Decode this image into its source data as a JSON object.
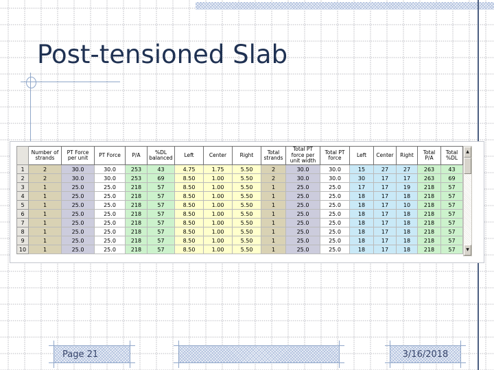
{
  "slide": {
    "title": "Post-tensioned Slab",
    "footer": {
      "page_label": "Page 21",
      "date": "3/16/2018"
    }
  },
  "table": {
    "columns": [
      {
        "label": "Number of strands",
        "group": "tan"
      },
      {
        "label": "PT Force per unit",
        "group": "lavender"
      },
      {
        "label": "PT Force",
        "group": "white"
      },
      {
        "label": "P/A",
        "group": "green"
      },
      {
        "label": "%DL balanced",
        "group": "green"
      },
      {
        "label": "Left",
        "group": "yellow"
      },
      {
        "label": "Center",
        "group": "yellow"
      },
      {
        "label": "Right",
        "group": "yellow"
      },
      {
        "label": "Total strands",
        "group": "tan"
      },
      {
        "label": "Total PT force per unit width",
        "group": "lavender"
      },
      {
        "label": "Total PT force",
        "group": "white"
      },
      {
        "label": "Left",
        "group": "cyan"
      },
      {
        "label": "Center",
        "group": "cyan"
      },
      {
        "label": "Right",
        "group": "cyan"
      },
      {
        "label": "Total P/A",
        "group": "green"
      },
      {
        "label": "Total %DL",
        "group": "green"
      }
    ],
    "rows": [
      {
        "num": "1",
        "cells": [
          "2",
          "30.0",
          "30.0",
          "253",
          "43",
          "4.75",
          "1.75",
          "5.50",
          "2",
          "30.0",
          "30.0",
          "15",
          "27",
          "27",
          "263",
          "43"
        ]
      },
      {
        "num": "2",
        "cells": [
          "2",
          "30.0",
          "30.0",
          "253",
          "69",
          "8.50",
          "1.00",
          "5.50",
          "2",
          "30.0",
          "30.0",
          "30",
          "17",
          "17",
          "263",
          "69"
        ]
      },
      {
        "num": "3",
        "cells": [
          "1",
          "25.0",
          "25.0",
          "218",
          "57",
          "8.50",
          "1.00",
          "5.50",
          "1",
          "25.0",
          "25.0",
          "17",
          "17",
          "19",
          "218",
          "57"
        ]
      },
      {
        "num": "4",
        "cells": [
          "1",
          "25.0",
          "25.0",
          "218",
          "57",
          "8.50",
          "1.00",
          "5.50",
          "1",
          "25.0",
          "25.0",
          "18",
          "17",
          "18",
          "218",
          "57"
        ]
      },
      {
        "num": "5",
        "cells": [
          "1",
          "25.0",
          "25.0",
          "218",
          "57",
          "8.50",
          "1.00",
          "5.50",
          "1",
          "25.0",
          "25.0",
          "18",
          "17",
          "10",
          "218",
          "57"
        ]
      },
      {
        "num": "6",
        "cells": [
          "1",
          "25.0",
          "25.0",
          "218",
          "57",
          "8.50",
          "1.00",
          "5.50",
          "1",
          "25.0",
          "25.0",
          "18",
          "17",
          "18",
          "218",
          "57"
        ]
      },
      {
        "num": "7",
        "cells": [
          "1",
          "25.0",
          "25.0",
          "218",
          "57",
          "8.50",
          "1.00",
          "5.50",
          "1",
          "25.0",
          "25.0",
          "18",
          "17",
          "18",
          "218",
          "57"
        ]
      },
      {
        "num": "8",
        "cells": [
          "1",
          "25.0",
          "25.0",
          "218",
          "57",
          "8.50",
          "1.00",
          "5.50",
          "1",
          "25.0",
          "25.0",
          "18",
          "17",
          "18",
          "218",
          "57"
        ]
      },
      {
        "num": "9",
        "cells": [
          "1",
          "25.0",
          "25.0",
          "218",
          "57",
          "8.50",
          "1.00",
          "5.50",
          "1",
          "25.0",
          "25.0",
          "18",
          "17",
          "18",
          "218",
          "57"
        ]
      },
      {
        "num": "10",
        "cells": [
          "1",
          "25.0",
          "25.0",
          "218",
          "57",
          "8.50",
          "1.00",
          "5.50",
          "1",
          "25.0",
          "25.0",
          "18",
          "17",
          "18",
          "218",
          "57"
        ]
      }
    ],
    "icons": {
      "scroll_up": "▲",
      "scroll_down": "▼"
    }
  },
  "colors": {
    "title": "#1f3152",
    "accent": "#8fa6c9",
    "rule": "#4a5d80",
    "footer": "#39466b",
    "tan": "#d9d2b4",
    "lavender": "#ccccdd",
    "green": "#ccf2cc",
    "yellow": "#ffffcc",
    "cyan": "#c9e9f7"
  }
}
